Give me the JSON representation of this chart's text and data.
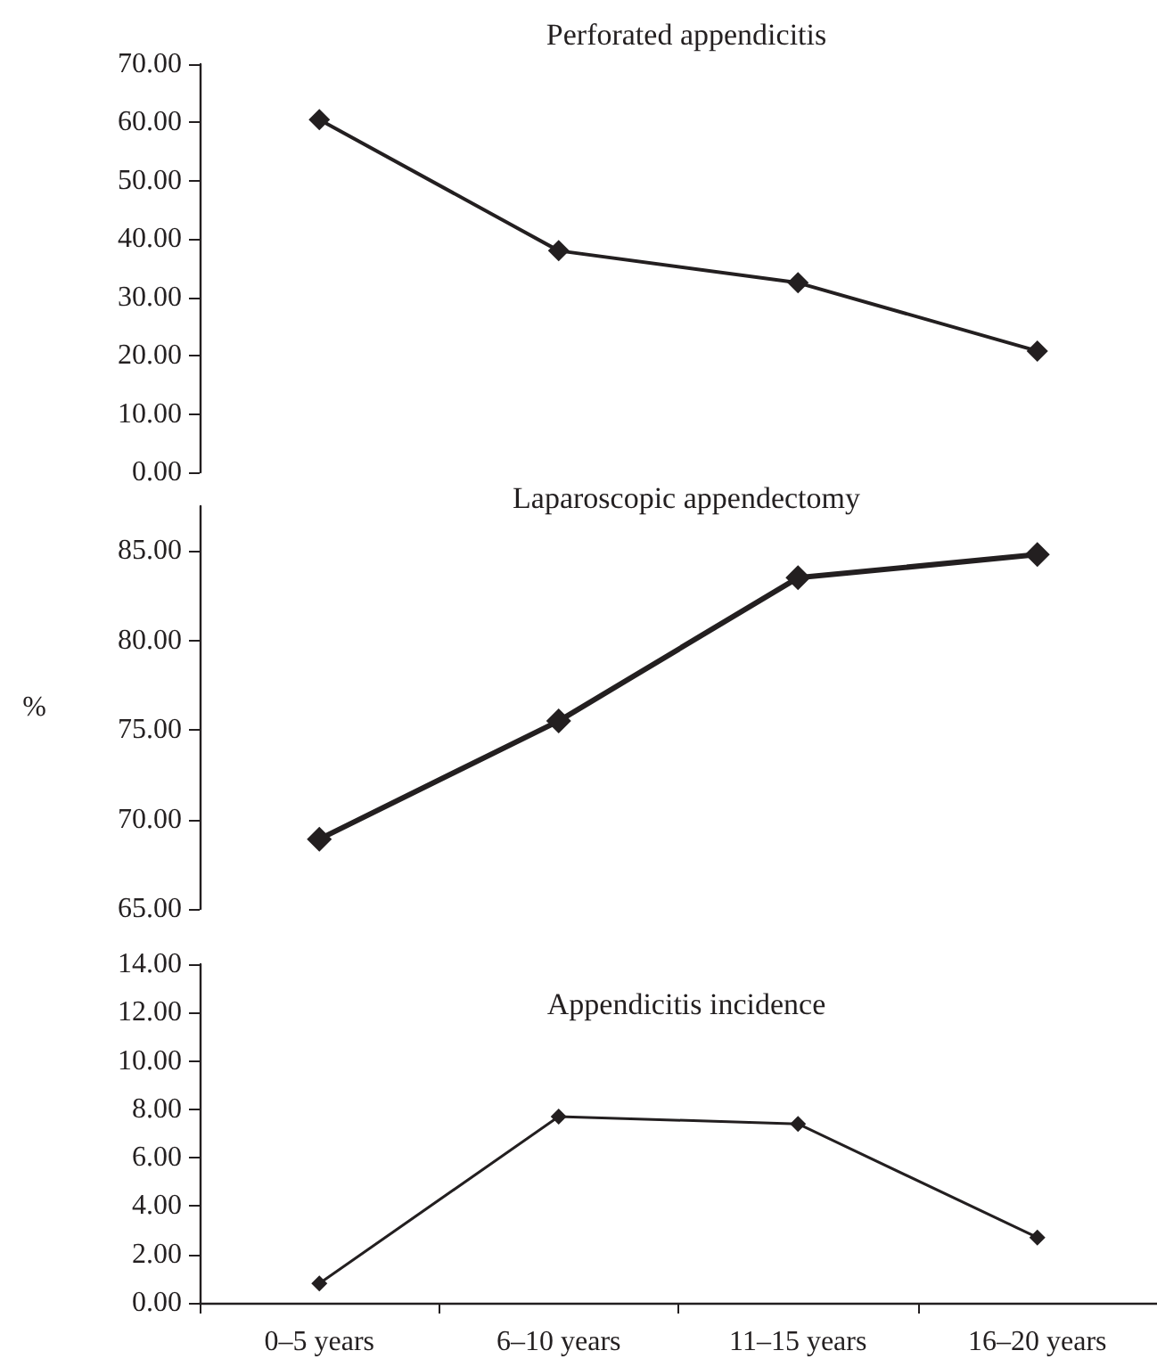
{
  "chart_data": [
    {
      "type": "line",
      "title": "Perforated appendicitis",
      "series": [
        {
          "color": "#231f20",
          "values": [
            60.5,
            38,
            32.5,
            20.8
          ]
        }
      ],
      "ylim": [
        0,
        70
      ],
      "yticks": [
        {
          "value": 0,
          "label": "0.00"
        },
        {
          "value": 10,
          "label": "10.00"
        },
        {
          "value": 20,
          "label": "20.00"
        },
        {
          "value": 30,
          "label": "30.00"
        },
        {
          "value": 40,
          "label": "40.00"
        },
        {
          "value": 50,
          "label": "50.00"
        },
        {
          "value": 60,
          "label": "60.00"
        },
        {
          "value": 70,
          "label": "70.00"
        }
      ],
      "tick_labels": "y",
      "marker": "diamond",
      "line_style": "solid"
    },
    {
      "type": "line",
      "title": "Laparoscopic appendectomy",
      "ylabel": "%",
      "series": [
        {
          "color": "#231f20",
          "values": [
            68.9,
            75.5,
            83.5,
            84.8
          ]
        }
      ],
      "ylim": [
        65,
        87.5
      ],
      "yticks": [
        {
          "value": 65,
          "label": "65.00"
        },
        {
          "value": 70,
          "label": "70.00"
        },
        {
          "value": 75,
          "label": "75.00"
        },
        {
          "value": 80,
          "label": "80.00"
        },
        {
          "value": 85,
          "label": "85.00"
        }
      ],
      "tick_labels": "y",
      "marker": "diamond",
      "line_style": "solid"
    },
    {
      "type": "line",
      "title": "Appendicitis incidence",
      "categories": [
        "0–5 years",
        "6–10 years",
        "11–15 years",
        "16–20 years"
      ],
      "series": [
        {
          "color": "#231f20",
          "values": [
            0.8,
            7.7,
            7.4,
            2.7
          ]
        }
      ],
      "ylim": [
        0,
        14
      ],
      "yticks": [
        {
          "value": 0,
          "label": "0.00"
        },
        {
          "value": 2,
          "label": "2.00"
        },
        {
          "value": 4,
          "label": "4.00"
        },
        {
          "value": 6,
          "label": "6.00"
        },
        {
          "value": 8,
          "label": "8.00"
        },
        {
          "value": 10,
          "label": "10.00"
        },
        {
          "value": 12,
          "label": "12.00"
        },
        {
          "value": 14,
          "label": "14.00"
        }
      ],
      "marker": "diamond",
      "line_style": "solid"
    }
  ]
}
